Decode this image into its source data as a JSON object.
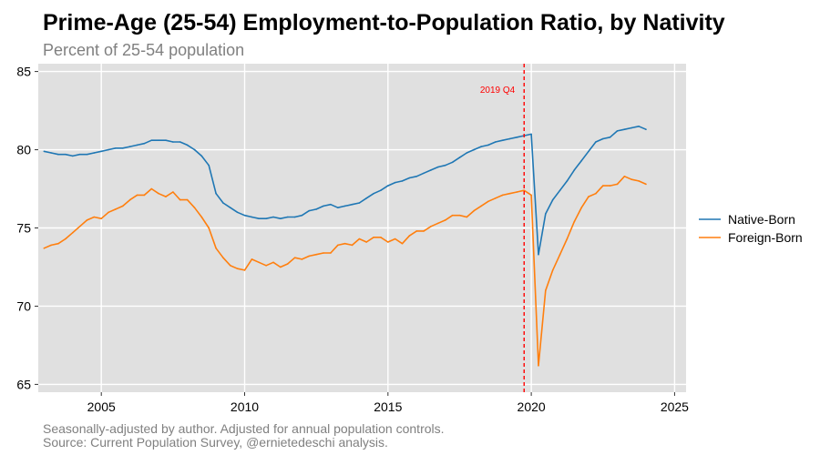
{
  "header": {
    "title": "Prime-Age (25-54) Employment-to-Population Ratio, by Nativity",
    "subtitle": "Percent of 25-54 population"
  },
  "footer": {
    "note": "Seasonally-adjusted by author. Adjusted for annual population controls.",
    "source": "Source: Current Population Survey, @ernietedeschi analysis."
  },
  "colors": {
    "native": "#1f77b4",
    "foreign": "#ff7f0e",
    "annotation": "#ff0000",
    "panel": "#e0e0e0",
    "grid": "#ffffff"
  },
  "chart_data": {
    "type": "line",
    "title": "Prime-Age (25-54) Employment-to-Population Ratio, by Nativity",
    "subtitle": "Percent of 25-54 population",
    "xlabel": "",
    "ylabel": "",
    "xlim": [
      2002.8,
      2025.4
    ],
    "ylim": [
      64.5,
      85.5
    ],
    "xticks": [
      2005,
      2010,
      2015,
      2020,
      2025
    ],
    "yticks": [
      65,
      70,
      75,
      80,
      85
    ],
    "grid": true,
    "legend_position": "right",
    "annotation": {
      "x": 2019.75,
      "label": "2019 Q4",
      "style": "dashed-vertical"
    },
    "series": [
      {
        "name": "Native-Born",
        "color": "#1f77b4",
        "x": [
          2003.0,
          2003.25,
          2003.5,
          2003.75,
          2004.0,
          2004.25,
          2004.5,
          2004.75,
          2005.0,
          2005.25,
          2005.5,
          2005.75,
          2006.0,
          2006.25,
          2006.5,
          2006.75,
          2007.0,
          2007.25,
          2007.5,
          2007.75,
          2008.0,
          2008.25,
          2008.5,
          2008.75,
          2009.0,
          2009.25,
          2009.5,
          2009.75,
          2010.0,
          2010.25,
          2010.5,
          2010.75,
          2011.0,
          2011.25,
          2011.5,
          2011.75,
          2012.0,
          2012.25,
          2012.5,
          2012.75,
          2013.0,
          2013.25,
          2013.5,
          2013.75,
          2014.0,
          2014.25,
          2014.5,
          2014.75,
          2015.0,
          2015.25,
          2015.5,
          2015.75,
          2016.0,
          2016.25,
          2016.5,
          2016.75,
          2017.0,
          2017.25,
          2017.5,
          2017.75,
          2018.0,
          2018.25,
          2018.5,
          2018.75,
          2019.0,
          2019.25,
          2019.5,
          2019.75,
          2020.0,
          2020.25,
          2020.5,
          2020.75,
          2021.0,
          2021.25,
          2021.5,
          2021.75,
          2022.0,
          2022.25,
          2022.5,
          2022.75,
          2023.0,
          2023.25,
          2023.5,
          2023.75,
          2024.0
        ],
        "values": [
          79.9,
          79.8,
          79.7,
          79.7,
          79.6,
          79.7,
          79.7,
          79.8,
          79.9,
          80.0,
          80.1,
          80.1,
          80.2,
          80.3,
          80.4,
          80.6,
          80.6,
          80.6,
          80.5,
          80.5,
          80.3,
          80.0,
          79.6,
          79.0,
          77.2,
          76.6,
          76.3,
          76.0,
          75.8,
          75.7,
          75.6,
          75.6,
          75.7,
          75.6,
          75.7,
          75.7,
          75.8,
          76.1,
          76.2,
          76.4,
          76.5,
          76.3,
          76.4,
          76.5,
          76.6,
          76.9,
          77.2,
          77.4,
          77.7,
          77.9,
          78.0,
          78.2,
          78.3,
          78.5,
          78.7,
          78.9,
          79.0,
          79.2,
          79.5,
          79.8,
          80.0,
          80.2,
          80.3,
          80.5,
          80.6,
          80.7,
          80.8,
          80.9,
          81.0,
          73.3,
          75.9,
          76.8,
          77.4,
          78.0,
          78.7,
          79.3,
          79.9,
          80.5,
          80.7,
          80.8,
          81.2,
          81.3,
          81.4,
          81.5,
          81.3
        ]
      },
      {
        "name": "Foreign-Born",
        "color": "#ff7f0e",
        "x": [
          2003.0,
          2003.25,
          2003.5,
          2003.75,
          2004.0,
          2004.25,
          2004.5,
          2004.75,
          2005.0,
          2005.25,
          2005.5,
          2005.75,
          2006.0,
          2006.25,
          2006.5,
          2006.75,
          2007.0,
          2007.25,
          2007.5,
          2007.75,
          2008.0,
          2008.25,
          2008.5,
          2008.75,
          2009.0,
          2009.25,
          2009.5,
          2009.75,
          2010.0,
          2010.25,
          2010.5,
          2010.75,
          2011.0,
          2011.25,
          2011.5,
          2011.75,
          2012.0,
          2012.25,
          2012.5,
          2012.75,
          2013.0,
          2013.25,
          2013.5,
          2013.75,
          2014.0,
          2014.25,
          2014.5,
          2014.75,
          2015.0,
          2015.25,
          2015.5,
          2015.75,
          2016.0,
          2016.25,
          2016.5,
          2016.75,
          2017.0,
          2017.25,
          2017.5,
          2017.75,
          2018.0,
          2018.25,
          2018.5,
          2018.75,
          2019.0,
          2019.25,
          2019.5,
          2019.75,
          2020.0,
          2020.25,
          2020.5,
          2020.75,
          2021.0,
          2021.25,
          2021.5,
          2021.75,
          2022.0,
          2022.25,
          2022.5,
          2022.75,
          2023.0,
          2023.25,
          2023.5,
          2023.75,
          2024.0
        ],
        "values": [
          73.7,
          73.9,
          74.0,
          74.3,
          74.7,
          75.1,
          75.5,
          75.7,
          75.6,
          76.0,
          76.2,
          76.4,
          76.8,
          77.1,
          77.1,
          77.5,
          77.2,
          77.0,
          77.3,
          76.8,
          76.8,
          76.3,
          75.7,
          75.0,
          73.7,
          73.1,
          72.6,
          72.4,
          72.3,
          73.0,
          72.8,
          72.6,
          72.8,
          72.5,
          72.7,
          73.1,
          73.0,
          73.2,
          73.3,
          73.4,
          73.4,
          73.9,
          74.0,
          73.9,
          74.3,
          74.1,
          74.4,
          74.4,
          74.1,
          74.3,
          74.0,
          74.5,
          74.8,
          74.8,
          75.1,
          75.3,
          75.5,
          75.8,
          75.8,
          75.7,
          76.1,
          76.4,
          76.7,
          76.9,
          77.1,
          77.2,
          77.3,
          77.4,
          77.1,
          66.2,
          71.0,
          72.3,
          73.3,
          74.3,
          75.4,
          76.3,
          77.0,
          77.2,
          77.7,
          77.7,
          77.8,
          78.3,
          78.1,
          78.0,
          77.8
        ]
      }
    ]
  }
}
